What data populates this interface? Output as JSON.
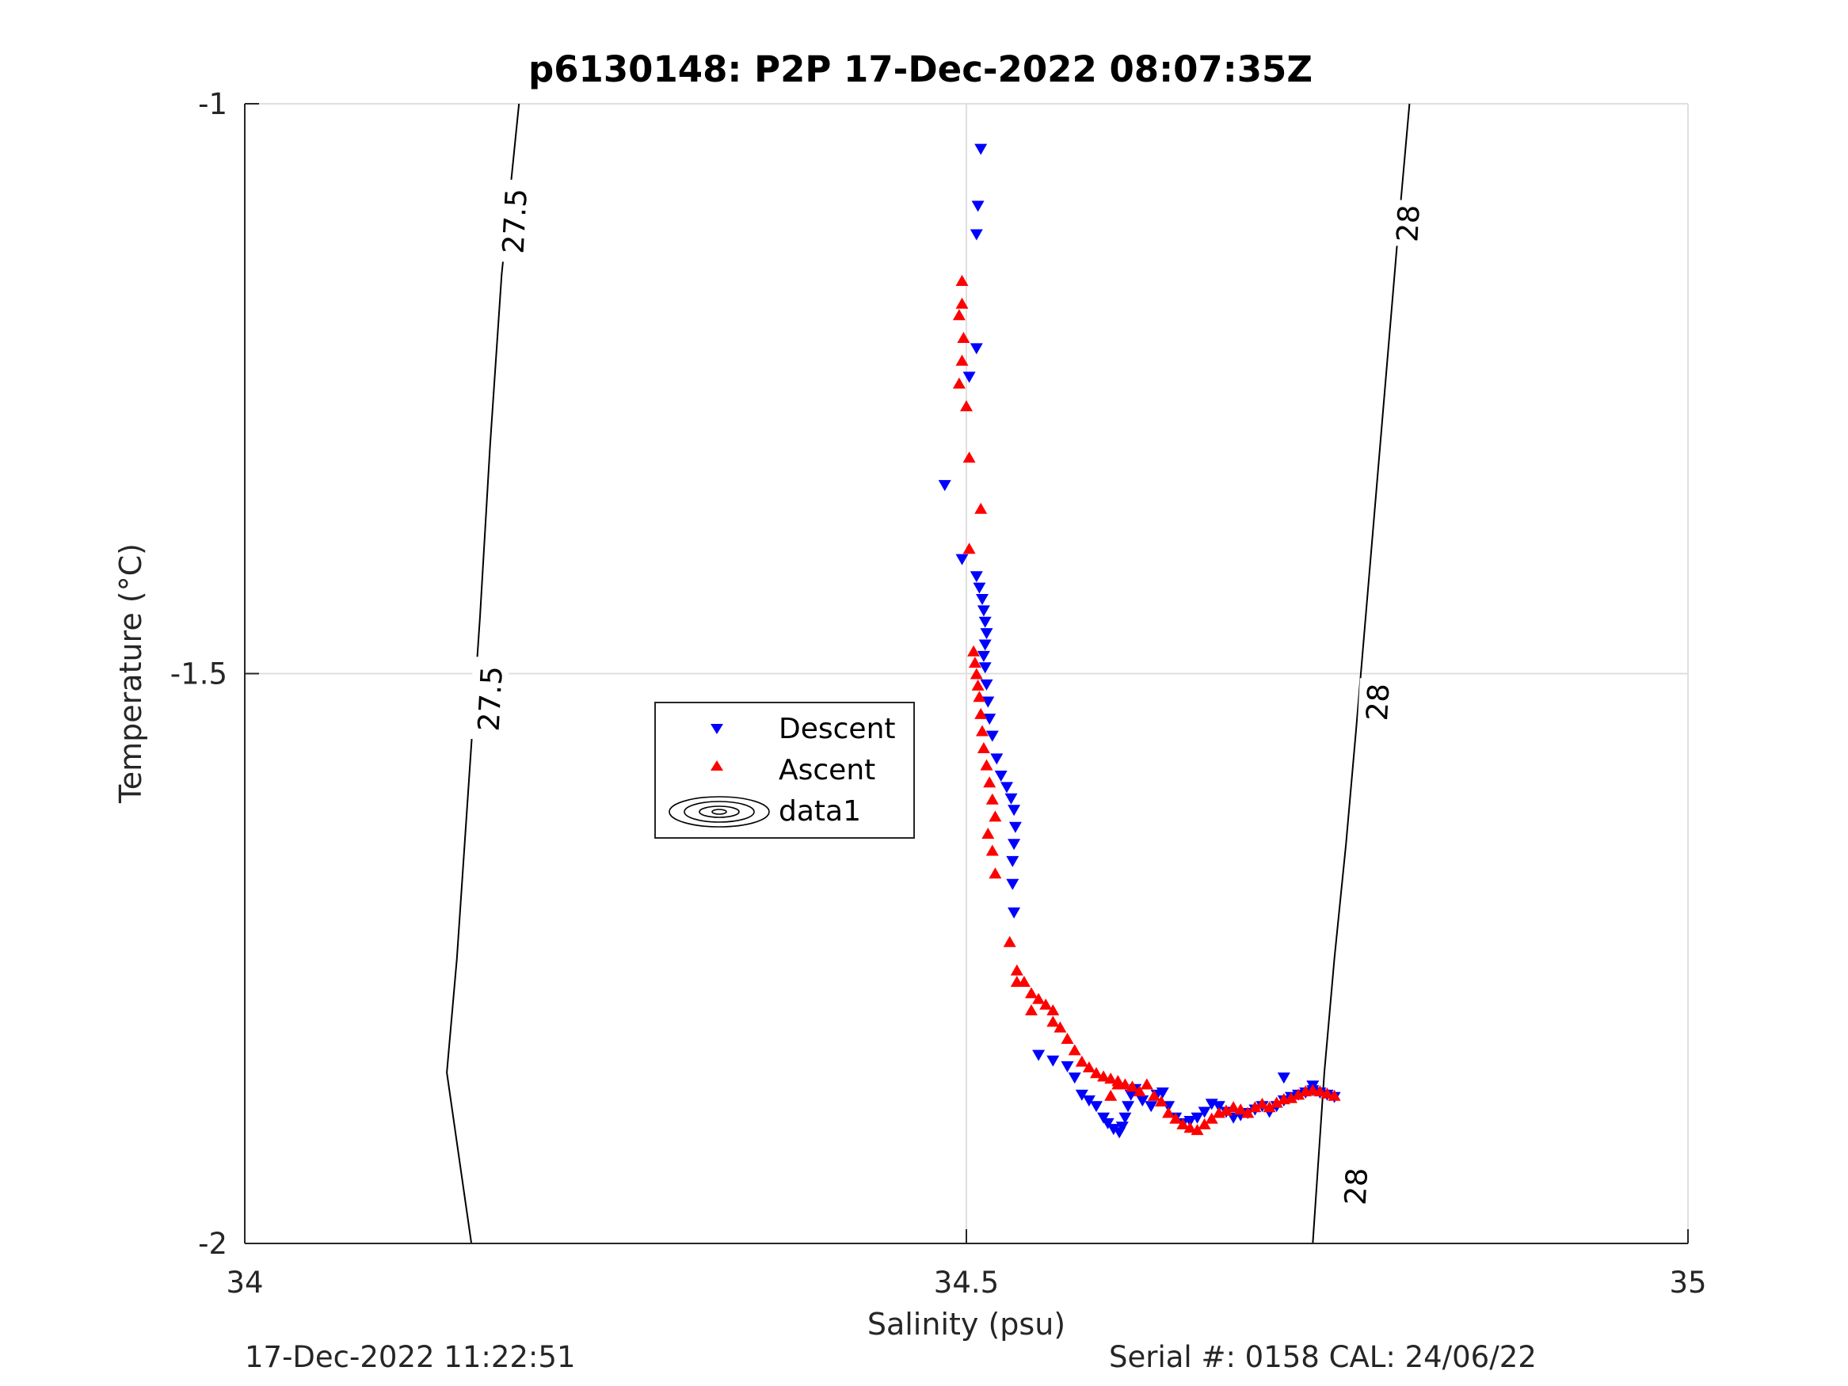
{
  "chart_data": {
    "type": "scatter",
    "title": "p6130148: P2P 17-Dec-2022 08:07:35Z",
    "xlabel": "Salinity (psu)",
    "ylabel": "Temperature (°C)",
    "xlim": [
      34,
      35
    ],
    "ylim": [
      -2,
      -1
    ],
    "xticks": [
      34,
      34.5,
      35
    ],
    "xtick_labels": [
      "34",
      "34.5",
      "35"
    ],
    "yticks": [
      -2,
      -1.5,
      -1
    ],
    "ytick_labels": [
      "-2",
      "-1.5",
      "-1"
    ],
    "grid": true,
    "legend": {
      "placement": "center-left",
      "entries": [
        {
          "label": "Descent",
          "marker": "triangle-down",
          "color": "#0000ff"
        },
        {
          "label": "Ascent",
          "marker": "triangle-up",
          "color": "#ff0000"
        },
        {
          "label": "data1",
          "marker": "contour",
          "color": "#000000"
        }
      ]
    },
    "contours": [
      {
        "value": "27.5",
        "points": [
          [
            34.19,
            -1.0
          ],
          [
            34.178,
            -1.15
          ],
          [
            34.17,
            -1.3
          ],
          [
            34.163,
            -1.45
          ],
          [
            34.155,
            -1.6
          ],
          [
            34.147,
            -1.75
          ],
          [
            34.14,
            -1.85
          ],
          [
            34.157,
            -2.0
          ]
        ]
      },
      {
        "value": "28",
        "points": [
          [
            34.807,
            -1.0
          ],
          [
            34.8,
            -1.1
          ],
          [
            34.79,
            -1.25
          ],
          [
            34.78,
            -1.4
          ],
          [
            34.77,
            -1.55
          ],
          [
            34.763,
            -1.65
          ],
          [
            34.755,
            -1.75
          ],
          [
            34.748,
            -1.85
          ],
          [
            34.74,
            -2.0
          ]
        ]
      }
    ],
    "contour_labels": [
      {
        "text": "27.5",
        "x": 34.187,
        "y": -1.103
      },
      {
        "text": "27.5",
        "x": 34.17,
        "y": -1.522
      },
      {
        "text": "28",
        "x": 34.806,
        "y": -1.105
      },
      {
        "text": "28",
        "x": 34.785,
        "y": -1.525
      },
      {
        "text": "28",
        "x": 34.77,
        "y": -1.95
      }
    ],
    "series": [
      {
        "name": "Descent",
        "marker": "triangle-down",
        "color": "#0000ff",
        "points": [
          [
            34.51,
            -1.04
          ],
          [
            34.508,
            -1.09
          ],
          [
            34.507,
            -1.115
          ],
          [
            34.507,
            -1.215
          ],
          [
            34.502,
            -1.24
          ],
          [
            34.485,
            -1.335
          ],
          [
            34.497,
            -1.4
          ],
          [
            34.507,
            -1.415
          ],
          [
            34.509,
            -1.425
          ],
          [
            34.511,
            -1.435
          ],
          [
            34.512,
            -1.445
          ],
          [
            34.513,
            -1.455
          ],
          [
            34.514,
            -1.465
          ],
          [
            34.513,
            -1.475
          ],
          [
            34.512,
            -1.485
          ],
          [
            34.513,
            -1.495
          ],
          [
            34.514,
            -1.51
          ],
          [
            34.515,
            -1.525
          ],
          [
            34.516,
            -1.54
          ],
          [
            34.518,
            -1.555
          ],
          [
            34.521,
            -1.575
          ],
          [
            34.524,
            -1.59
          ],
          [
            34.528,
            -1.6
          ],
          [
            34.531,
            -1.61
          ],
          [
            34.533,
            -1.62
          ],
          [
            34.534,
            -1.635
          ],
          [
            34.533,
            -1.65
          ],
          [
            34.532,
            -1.665
          ],
          [
            34.532,
            -1.685
          ],
          [
            34.533,
            -1.71
          ],
          [
            34.55,
            -1.835
          ],
          [
            34.56,
            -1.84
          ],
          [
            34.57,
            -1.845
          ],
          [
            34.575,
            -1.855
          ],
          [
            34.58,
            -1.87
          ],
          [
            34.585,
            -1.875
          ],
          [
            34.59,
            -1.88
          ],
          [
            34.595,
            -1.89
          ],
          [
            34.598,
            -1.895
          ],
          [
            34.602,
            -1.9
          ],
          [
            34.606,
            -1.903
          ],
          [
            34.608,
            -1.898
          ],
          [
            34.61,
            -1.89
          ],
          [
            34.612,
            -1.88
          ],
          [
            34.614,
            -1.87
          ],
          [
            34.617,
            -1.865
          ],
          [
            34.622,
            -1.875
          ],
          [
            34.628,
            -1.88
          ],
          [
            34.632,
            -1.87
          ],
          [
            34.636,
            -1.868
          ],
          [
            34.64,
            -1.88
          ],
          [
            34.645,
            -1.89
          ],
          [
            34.65,
            -1.895
          ],
          [
            34.655,
            -1.893
          ],
          [
            34.66,
            -1.89
          ],
          [
            34.665,
            -1.885
          ],
          [
            34.67,
            -1.878
          ],
          [
            34.675,
            -1.88
          ],
          [
            34.68,
            -1.885
          ],
          [
            34.685,
            -1.89
          ],
          [
            34.69,
            -1.888
          ],
          [
            34.695,
            -1.886
          ],
          [
            34.7,
            -1.883
          ],
          [
            34.705,
            -1.88
          ],
          [
            34.71,
            -1.885
          ],
          [
            34.715,
            -1.88
          ],
          [
            34.72,
            -1.875
          ],
          [
            34.725,
            -1.872
          ],
          [
            34.73,
            -1.87
          ],
          [
            34.735,
            -1.868
          ],
          [
            34.74,
            -1.866
          ],
          [
            34.745,
            -1.868
          ],
          [
            34.75,
            -1.87
          ],
          [
            34.755,
            -1.872
          ],
          [
            34.72,
            -1.855
          ],
          [
            34.74,
            -1.862
          ]
        ]
      },
      {
        "name": "Ascent",
        "marker": "triangle-up",
        "color": "#ff0000",
        "points": [
          [
            34.497,
            -1.155
          ],
          [
            34.497,
            -1.175
          ],
          [
            34.495,
            -1.185
          ],
          [
            34.498,
            -1.205
          ],
          [
            34.497,
            -1.225
          ],
          [
            34.495,
            -1.245
          ],
          [
            34.5,
            -1.265
          ],
          [
            34.502,
            -1.31
          ],
          [
            34.51,
            -1.355
          ],
          [
            34.502,
            -1.39
          ],
          [
            34.505,
            -1.48
          ],
          [
            34.506,
            -1.49
          ],
          [
            34.507,
            -1.5
          ],
          [
            34.508,
            -1.51
          ],
          [
            34.509,
            -1.52
          ],
          [
            34.51,
            -1.535
          ],
          [
            34.511,
            -1.55
          ],
          [
            34.512,
            -1.565
          ],
          [
            34.514,
            -1.58
          ],
          [
            34.516,
            -1.595
          ],
          [
            34.518,
            -1.61
          ],
          [
            34.52,
            -1.625
          ],
          [
            34.515,
            -1.64
          ],
          [
            34.518,
            -1.655
          ],
          [
            34.52,
            -1.675
          ],
          [
            34.53,
            -1.735
          ],
          [
            34.535,
            -1.76
          ],
          [
            34.54,
            -1.77
          ],
          [
            34.545,
            -1.78
          ],
          [
            34.55,
            -1.785
          ],
          [
            34.555,
            -1.79
          ],
          [
            34.56,
            -1.795
          ],
          [
            34.565,
            -1.81
          ],
          [
            34.57,
            -1.82
          ],
          [
            34.575,
            -1.83
          ],
          [
            34.58,
            -1.84
          ],
          [
            34.585,
            -1.845
          ],
          [
            34.59,
            -1.85
          ],
          [
            34.595,
            -1.853
          ],
          [
            34.6,
            -1.855
          ],
          [
            34.605,
            -1.857
          ],
          [
            34.61,
            -1.86
          ],
          [
            34.615,
            -1.862
          ],
          [
            34.62,
            -1.866
          ],
          [
            34.625,
            -1.86
          ],
          [
            34.63,
            -1.87
          ],
          [
            34.635,
            -1.875
          ],
          [
            34.64,
            -1.885
          ],
          [
            34.645,
            -1.89
          ],
          [
            34.65,
            -1.895
          ],
          [
            34.655,
            -1.898
          ],
          [
            34.66,
            -1.9
          ],
          [
            34.665,
            -1.895
          ],
          [
            34.67,
            -1.89
          ],
          [
            34.675,
            -1.885
          ],
          [
            34.68,
            -1.883
          ],
          [
            34.685,
            -1.88
          ],
          [
            34.69,
            -1.882
          ],
          [
            34.695,
            -1.885
          ],
          [
            34.7,
            -1.88
          ],
          [
            34.705,
            -1.877
          ],
          [
            34.71,
            -1.88
          ],
          [
            34.715,
            -1.876
          ],
          [
            34.72,
            -1.873
          ],
          [
            34.725,
            -1.872
          ],
          [
            34.73,
            -1.869
          ],
          [
            34.735,
            -1.866
          ],
          [
            34.74,
            -1.865
          ],
          [
            34.745,
            -1.866
          ],
          [
            34.75,
            -1.868
          ],
          [
            34.755,
            -1.87
          ],
          [
            34.535,
            -1.77
          ],
          [
            34.545,
            -1.795
          ],
          [
            34.56,
            -1.805
          ],
          [
            34.6,
            -1.87
          ],
          [
            34.605,
            -1.86
          ]
        ]
      }
    ]
  },
  "footer": {
    "timestamp": "17-Dec-2022 11:22:51",
    "serial": "Serial #: 0158  CAL: 24/06/22"
  }
}
